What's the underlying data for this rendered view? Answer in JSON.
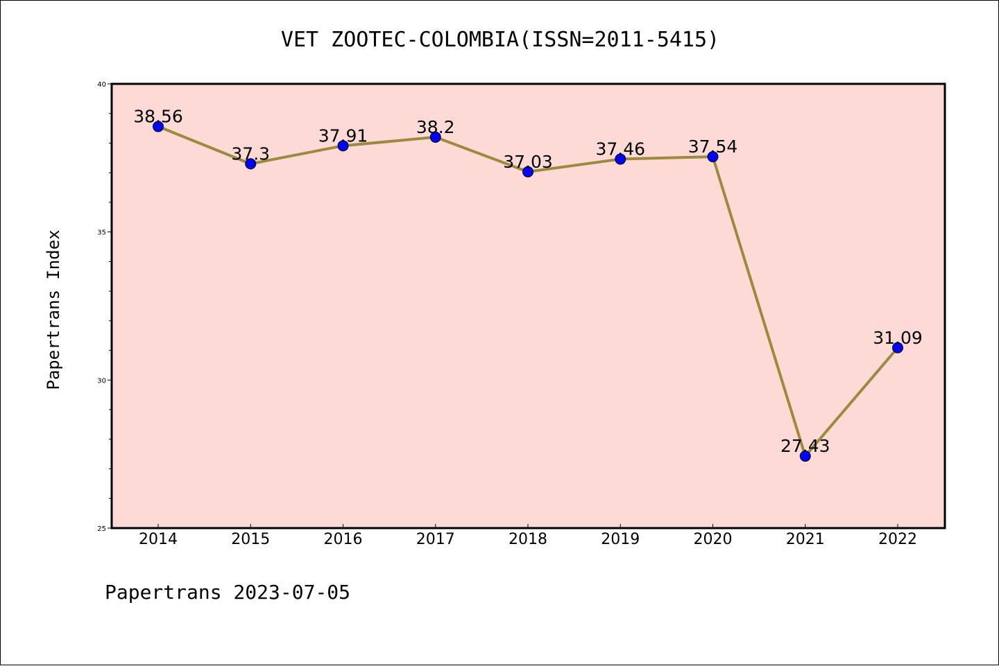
{
  "chart_data": {
    "type": "line",
    "title": "VET ZOOTEC-COLOMBIA(ISSN=2011-5415)",
    "xlabel": "",
    "ylabel": "Papertrans Index",
    "categories": [
      "2014",
      "2015",
      "2016",
      "2017",
      "2018",
      "2019",
      "2020",
      "2021",
      "2022"
    ],
    "series": [
      {
        "values": [
          38.56,
          37.3,
          37.91,
          38.2,
          37.03,
          37.46,
          37.54,
          27.43,
          31.09
        ],
        "labels": [
          "38.56",
          "37.3",
          "37.91",
          "38.2",
          "37.03",
          "37.46",
          "37.54",
          "27.43",
          "31.09"
        ]
      }
    ],
    "ylim": [
      25,
      40
    ],
    "yticks": [
      "25",
      "30",
      "35",
      "40"
    ],
    "grid": false,
    "colors": {
      "plot_background": "#fddad6",
      "line": "#9c8a3e",
      "marker": "#0000ff"
    }
  },
  "footer": "Papertrans 2023-07-05"
}
